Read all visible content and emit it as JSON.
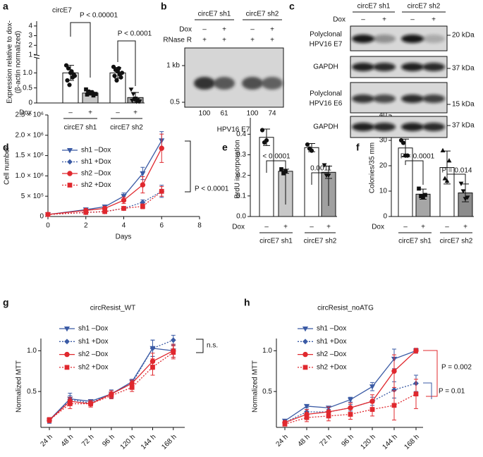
{
  "chart_data": [
    {
      "type": "bar",
      "label": "a",
      "title": "circE7",
      "ylabel": [
        "Expression relative to dox-",
        "(β-actin normalized)"
      ],
      "categories": [
        "–",
        "+",
        "–",
        "+"
      ],
      "group_labels": [
        "circE7 sh1",
        "circE7 sh2"
      ],
      "group_axis_label": "Dox",
      "values": [
        1.0,
        0.33,
        1.0,
        0.18
      ],
      "errors": [
        0.25,
        0.07,
        0.18,
        0.17
      ],
      "colors": [
        "#ffffff",
        "#c8c8c8",
        "#ffffff",
        "#a0a0a0"
      ],
      "points": [
        [
          1.25,
          1.15,
          1.0,
          0.85,
          0.9,
          0.75,
          0.6,
          1.05,
          0.95
        ],
        [
          0.45,
          0.38,
          0.35,
          0.32,
          0.3,
          0.28,
          0.33,
          0.36,
          0.25,
          0.3
        ],
        [
          1.2,
          1.1,
          1.05,
          0.95,
          1.0,
          0.9,
          0.75,
          1.15,
          0.85
        ],
        [
          0.45,
          0.3,
          0.15,
          0.1,
          0.05,
          0.08,
          0.12,
          0.05,
          0.06
        ]
      ],
      "point_markers": [
        "circle",
        "square",
        "circle",
        "triangle-down"
      ],
      "ylim": [
        0,
        1.5
      ],
      "yticks": [
        0,
        0.5,
        {
          "value": 1,
          "label": "1.0"
        }
      ],
      "ylim_upper": [
        1,
        4.5
      ],
      "yticks_upper": [
        1,
        2,
        3,
        4
      ],
      "annotations": [
        "P < 0.00001",
        "P < 0.0001"
      ]
    },
    {
      "type": "line",
      "label": "d",
      "xlabel": "Days",
      "ylabel": "Cell number",
      "x": [
        0,
        2,
        3,
        4,
        5,
        6
      ],
      "xlim": [
        0,
        8
      ],
      "xticks": [
        0,
        2,
        4,
        6,
        8
      ],
      "ylim": [
        0,
        2500000
      ],
      "yticks": [
        0,
        {
          "value": 500000,
          "label": "5 × 10⁵"
        },
        {
          "value": 1000000,
          "label": "1.0 × 10⁶"
        },
        {
          "value": 1500000,
          "label": "1.5 × 10⁶"
        },
        {
          "value": 2000000,
          "label": "2.0 × 10⁶"
        },
        {
          "value": 2500000,
          "label": "2.5 × 10⁶"
        }
      ],
      "series": [
        {
          "name": "sh1 –Dox",
          "color": "#3b5ba5",
          "marker": "triangle-down",
          "line_style": "solid",
          "values": [
            50000,
            170000,
            240000,
            500000,
            1060000,
            1870000
          ],
          "errors": [
            10000,
            30000,
            40000,
            80000,
            150000,
            220000
          ]
        },
        {
          "name": "sh1 +Dox",
          "color": "#3b5ba5",
          "marker": "diamond",
          "line_style": "dotted",
          "values": [
            50000,
            100000,
            120000,
            200000,
            350000,
            620000
          ],
          "errors": [
            10000,
            20000,
            30000,
            40000,
            60000,
            150000
          ]
        },
        {
          "name": "sh2 –Dox",
          "color": "#e0282e",
          "marker": "circle",
          "line_style": "solid",
          "values": [
            50000,
            150000,
            200000,
            400000,
            780000,
            1680000
          ],
          "errors": [
            10000,
            30000,
            40000,
            80000,
            200000,
            350000
          ]
        },
        {
          "name": "sh2 +Dox",
          "color": "#e0282e",
          "marker": "square",
          "line_style": "dotted",
          "values": [
            50000,
            100000,
            120000,
            200000,
            250000,
            620000
          ],
          "errors": [
            10000,
            20000,
            30000,
            40000,
            60000,
            120000
          ]
        }
      ],
      "annotations": [
        "P < 0.0001"
      ]
    },
    {
      "type": "bar",
      "label": "e",
      "ylabel": [
        "BrdU incorporation"
      ],
      "categories": [
        "–",
        "+",
        "–",
        "+"
      ],
      "group_labels": [
        "circE7 sh1",
        "circE7 sh2"
      ],
      "group_axis_label": "Dox",
      "values": [
        0.385,
        0.22,
        0.335,
        0.215
      ],
      "errors": [
        0.04,
        0.01,
        0.02,
        0.03
      ],
      "colors": [
        "#ffffff",
        "#c8c8c8",
        "#ffffff",
        "#a0a0a0"
      ],
      "points": [
        [
          0.42,
          0.36,
          0.37
        ],
        [
          0.23,
          0.21,
          0.22
        ],
        [
          0.35,
          0.33,
          0.32
        ],
        [
          0.25,
          0.2,
          0.2
        ]
      ],
      "point_markers": [
        "circle",
        "square",
        "circle",
        "triangle-down"
      ],
      "ylim": [
        0,
        0.48
      ],
      "yticks": [
        {
          "value": 0,
          "label": "0.0"
        },
        0.1,
        0.2,
        0.3,
        0.4
      ],
      "annotations": [
        "< 0.0001",
        "0.0011"
      ]
    },
    {
      "type": "bar",
      "label": "f",
      "ylabel": [
        "Colonies/35 mm"
      ],
      "categories": [
        "–",
        "+",
        "–",
        "+"
      ],
      "group_labels": [
        "circE7 sh1",
        "circE7 sh2"
      ],
      "group_axis_label": "Dox",
      "values": [
        27,
        8.8,
        19.3,
        9.3
      ],
      "errors": [
        3.5,
        2,
        6.5,
        3.5
      ],
      "colors": [
        "#ffffff",
        "#a6a6a6",
        "#ffffff",
        "#8c8c8c"
      ],
      "points": [
        [
          30,
          29,
          24,
          24
        ],
        [
          11,
          8,
          7.5,
          8.5
        ],
        [
          26,
          15,
          14,
          22
        ],
        [
          13,
          10,
          7,
          7.5
        ]
      ],
      "point_markers": [
        "circle",
        "square",
        "triangle-up",
        "triangle-down"
      ],
      "ylim": [
        0,
        40
      ],
      "yticks": [
        0,
        10,
        20,
        30,
        40
      ],
      "annotations": [
        "P = 0.0001",
        "P = 0.014"
      ]
    },
    {
      "type": "line",
      "label": "g",
      "title": "circResist_WT",
      "ylabel": "Normalized MTT",
      "categories": [
        "24 h",
        "48 h",
        "72 h",
        "96 h",
        "120 h",
        "144 h",
        "168 h"
      ],
      "ylim": [
        0.06,
        1.15
      ],
      "yticks": [
        0.5,
        {
          "value": 1,
          "label": "1.0"
        }
      ],
      "series": [
        {
          "name": "sh1 –Dox",
          "color": "#3b5ba5",
          "marker": "triangle-down",
          "line_style": "solid",
          "values": [
            0.15,
            0.41,
            0.38,
            0.47,
            0.62,
            1.03,
            1.0
          ],
          "errors": [
            0.03,
            0.07,
            0.02,
            0.04,
            0.03,
            0.1,
            0.08
          ]
        },
        {
          "name": "sh1 +Dox",
          "color": "#3b5ba5",
          "marker": "diamond",
          "line_style": "dotted",
          "values": [
            0.14,
            0.4,
            0.36,
            0.47,
            0.6,
            1.03,
            1.13
          ],
          "errors": [
            0.03,
            0.05,
            0.03,
            0.05,
            0.04,
            0.1,
            0.06
          ]
        },
        {
          "name": "sh2 –Dox",
          "color": "#e0282e",
          "marker": "circle",
          "line_style": "solid",
          "values": [
            0.15,
            0.38,
            0.35,
            0.47,
            0.6,
            0.87,
            1.0
          ],
          "errors": [
            0.03,
            0.05,
            0.04,
            0.04,
            0.04,
            0.1,
            0.08
          ]
        },
        {
          "name": "sh2 +Dox",
          "color": "#e0282e",
          "marker": "square",
          "line_style": "dotted",
          "values": [
            0.15,
            0.35,
            0.35,
            0.45,
            0.55,
            0.8,
            0.98
          ],
          "errors": [
            0.03,
            0.06,
            0.04,
            0.04,
            0.05,
            0.1,
            0.08
          ]
        }
      ],
      "annotations": [
        "n.s."
      ]
    },
    {
      "type": "line",
      "label": "h",
      "title": "circResist_noATG",
      "ylabel": "Normalized MTT",
      "categories": [
        "24 h",
        "48 h",
        "72 h",
        "96 h",
        "120 h",
        "144 h",
        "168 h"
      ],
      "ylim": [
        0.06,
        1.15
      ],
      "yticks": [
        0.5,
        {
          "value": 1,
          "label": "1.0"
        }
      ],
      "series": [
        {
          "name": "sh1 –Dox",
          "color": "#3b5ba5",
          "marker": "triangle-down",
          "line_style": "solid",
          "values": [
            0.14,
            0.32,
            0.3,
            0.4,
            0.56,
            0.9,
            1.0
          ],
          "errors": [
            0.02,
            0.02,
            0.02,
            0.03,
            0.05,
            0.12,
            0.03
          ]
        },
        {
          "name": "sh1 +Dox",
          "color": "#3b5ba5",
          "marker": "diamond",
          "line_style": "dotted",
          "values": [
            0.12,
            0.25,
            0.25,
            0.3,
            0.38,
            0.52,
            0.6
          ],
          "errors": [
            0.02,
            0.03,
            0.03,
            0.04,
            0.05,
            0.1,
            0.1
          ]
        },
        {
          "name": "sh2 –Dox",
          "color": "#e0282e",
          "marker": "circle",
          "line_style": "solid",
          "values": [
            0.12,
            0.22,
            0.25,
            0.3,
            0.38,
            0.75,
            1.0
          ],
          "errors": [
            0.02,
            0.06,
            0.06,
            0.06,
            0.08,
            0.2,
            0.03
          ]
        },
        {
          "name": "sh2 +Dox",
          "color": "#e0282e",
          "marker": "square",
          "line_style": "dotted",
          "values": [
            0.1,
            0.18,
            0.2,
            0.22,
            0.28,
            0.33,
            0.47
          ],
          "errors": [
            0.02,
            0.05,
            0.06,
            0.06,
            0.08,
            0.18,
            0.18
          ]
        }
      ],
      "annotations": [
        "P = 0.002",
        "P = 0.01"
      ]
    }
  ],
  "blots": {
    "b": {
      "label": "b",
      "groups": [
        "circE7 sh1",
        "circE7 sh2"
      ],
      "rows": [
        {
          "name": "Dox",
          "signs": [
            "–",
            "+",
            "–",
            "+"
          ]
        },
        {
          "name": "RNase R",
          "signs": [
            "+",
            "+",
            "+",
            "+"
          ]
        }
      ],
      "markers": [
        "1 kb",
        "0.5"
      ],
      "quantification": [
        100,
        61,
        100,
        74
      ],
      "caption": "HPV16 E7"
    },
    "c": {
      "label": "c",
      "groups": [
        "circE7 sh1",
        "circE7 sh2"
      ],
      "dox": {
        "name": "Dox",
        "signs": [
          "–",
          "+",
          "–",
          "+"
        ]
      },
      "blots": [
        {
          "name": [
            "Polyclonal",
            "HPV16 E7"
          ],
          "size": "20 kDa"
        },
        {
          "name": [
            "GAPDH"
          ],
          "size": "37 kDa"
        },
        {
          "name": [
            "Polyclonal",
            "HPV16 E6"
          ],
          "size": "15 kDa"
        },
        {
          "name": [
            "GAPDH"
          ],
          "size": "37 kDa"
        }
      ]
    }
  }
}
